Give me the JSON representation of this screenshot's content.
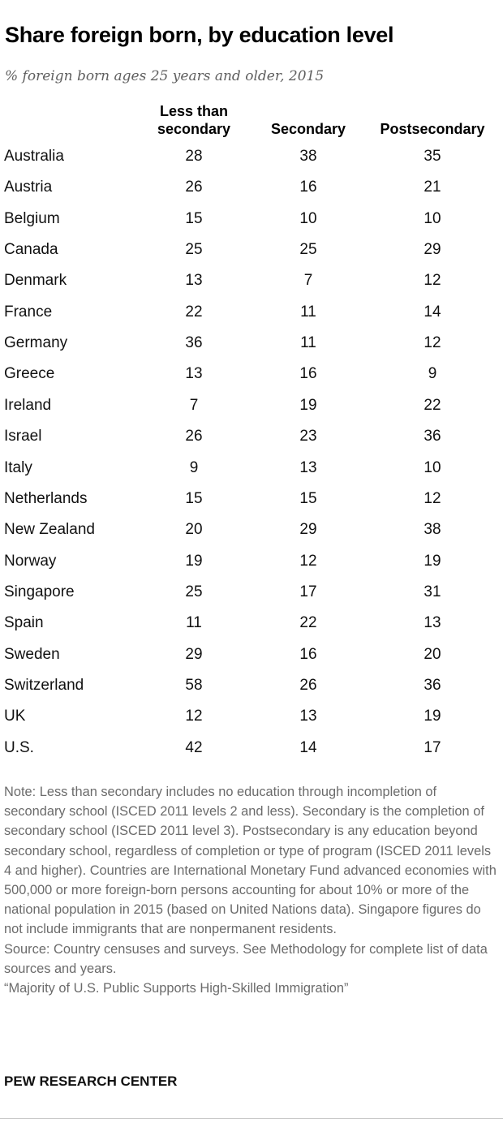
{
  "title": "Share foreign born, by education level",
  "subtitle": "% foreign born ages 25 years and older, 2015",
  "chart_data": {
    "type": "table",
    "columns": [
      {
        "line1": "Less than",
        "line2": "secondary"
      },
      {
        "line1": "",
        "line2": "Secondary"
      },
      {
        "line1": "",
        "line2": "Postsecondary"
      }
    ],
    "rows": [
      {
        "country": "Australia",
        "values": [
          "28",
          "38",
          "35"
        ]
      },
      {
        "country": "Austria",
        "values": [
          "26",
          "16",
          "21"
        ]
      },
      {
        "country": "Belgium",
        "values": [
          "15",
          "10",
          "10"
        ]
      },
      {
        "country": "Canada",
        "values": [
          "25",
          "25",
          "29"
        ]
      },
      {
        "country": "Denmark",
        "values": [
          "13",
          "7",
          "12"
        ]
      },
      {
        "country": "France",
        "values": [
          "22",
          "11",
          "14"
        ]
      },
      {
        "country": "Germany",
        "values": [
          "36",
          "11",
          "12"
        ]
      },
      {
        "country": "Greece",
        "values": [
          "13",
          "16",
          "9"
        ]
      },
      {
        "country": "Ireland",
        "values": [
          "7",
          "19",
          "22"
        ]
      },
      {
        "country": "Israel",
        "values": [
          "26",
          "23",
          "36"
        ]
      },
      {
        "country": "Italy",
        "values": [
          "9",
          "13",
          "10"
        ]
      },
      {
        "country": "Netherlands",
        "values": [
          "15",
          "15",
          "12"
        ]
      },
      {
        "country": "New Zealand",
        "values": [
          "20",
          "29",
          "38"
        ]
      },
      {
        "country": "Norway",
        "values": [
          "19",
          "12",
          "19"
        ]
      },
      {
        "country": "Singapore",
        "values": [
          "25",
          "17",
          "31"
        ]
      },
      {
        "country": "Spain",
        "values": [
          "11",
          "22",
          "13"
        ]
      },
      {
        "country": "Sweden",
        "values": [
          "29",
          "16",
          "20"
        ]
      },
      {
        "country": "Switzerland",
        "values": [
          "58",
          "26",
          "36"
        ]
      },
      {
        "country": "UK",
        "values": [
          "12",
          "13",
          "19"
        ]
      },
      {
        "country": "U.S.",
        "values": [
          "42",
          "14",
          "17"
        ]
      }
    ]
  },
  "notes": {
    "note": "Note: Less than secondary includes no education through incompletion of secondary school (ISCED 2011 levels 2 and less). Secondary is the completion of secondary school (ISCED 2011 level 3). Postsecondary is any education beyond secondary school, regardless of completion or type of program (ISCED 2011 levels 4 and higher). Countries are International Monetary Fund advanced economies with 500,000 or more foreign-born persons accounting for about 10% or more of the national population in 2015 (based on United Nations data). Singapore figures do not include immigrants that are nonpermanent residents.",
    "source": "Source: Country censuses and surveys. See Methodology for complete list of data sources and years.",
    "report": "“Majority of U.S. Public Supports High-Skilled Immigration”"
  },
  "brand": "PEW RESEARCH CENTER",
  "colors": {
    "text": "#111111",
    "subtitle": "#5f5f5f",
    "notes": "#6b6b6b",
    "rule": "#c9c9c9"
  }
}
